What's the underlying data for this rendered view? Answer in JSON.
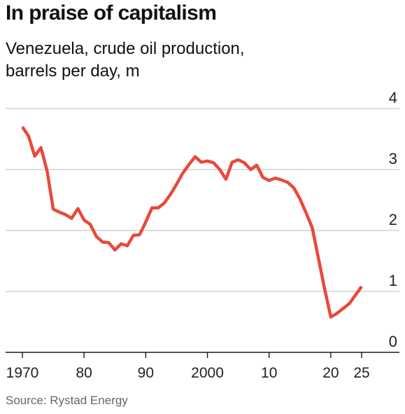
{
  "chart_data": {
    "type": "line",
    "title": "In praise of capitalism",
    "subtitle": [
      "Venezuela, crude oil production,",
      "barrels per day, m"
    ],
    "source": "Source: Rystad Energy",
    "ylim": [
      0,
      4
    ],
    "yticks": [
      0,
      1,
      2,
      3,
      4
    ],
    "xlim": [
      1970,
      2027
    ],
    "xticks": [
      {
        "year": 1970,
        "label": "1970"
      },
      {
        "year": 1980,
        "label": "80"
      },
      {
        "year": 1990,
        "label": "90"
      },
      {
        "year": 2000,
        "label": "2000"
      },
      {
        "year": 2010,
        "label": "10"
      },
      {
        "year": 2020,
        "label": "20"
      },
      {
        "year": 2025,
        "label": "25"
      }
    ],
    "grid": true,
    "line_color": "#e8493a",
    "series": [
      {
        "x": [
          1970,
          1971,
          1972,
          1973,
          1974,
          1975,
          1976,
          1977,
          1978,
          1979,
          1980,
          1981,
          1982,
          1983,
          1984,
          1985,
          1986,
          1987,
          1988,
          1989,
          1990,
          1991,
          1992,
          1993,
          1994,
          1995,
          1996,
          1997,
          1998,
          1999,
          2000,
          2001,
          2002,
          2003,
          2004,
          2005,
          2006,
          2007,
          2008,
          2009,
          2010,
          2011,
          2012,
          2013,
          2014,
          2015,
          2016,
          2017,
          2018,
          2019,
          2020,
          2021,
          2022,
          2023,
          2024,
          2025
        ],
        "y": [
          3.7,
          3.55,
          3.22,
          3.36,
          2.98,
          2.35,
          2.3,
          2.26,
          2.2,
          2.36,
          2.17,
          2.1,
          1.9,
          1.81,
          1.8,
          1.68,
          1.78,
          1.75,
          1.92,
          1.93,
          2.14,
          2.37,
          2.37,
          2.45,
          2.59,
          2.76,
          2.94,
          3.08,
          3.21,
          3.12,
          3.14,
          3.11,
          3.0,
          2.84,
          3.12,
          3.16,
          3.11,
          3.0,
          3.07,
          2.87,
          2.82,
          2.86,
          2.83,
          2.79,
          2.7,
          2.52,
          2.29,
          2.04,
          1.54,
          1.04,
          0.58,
          0.64,
          0.72,
          0.8,
          0.94,
          1.08
        ]
      }
    ]
  }
}
